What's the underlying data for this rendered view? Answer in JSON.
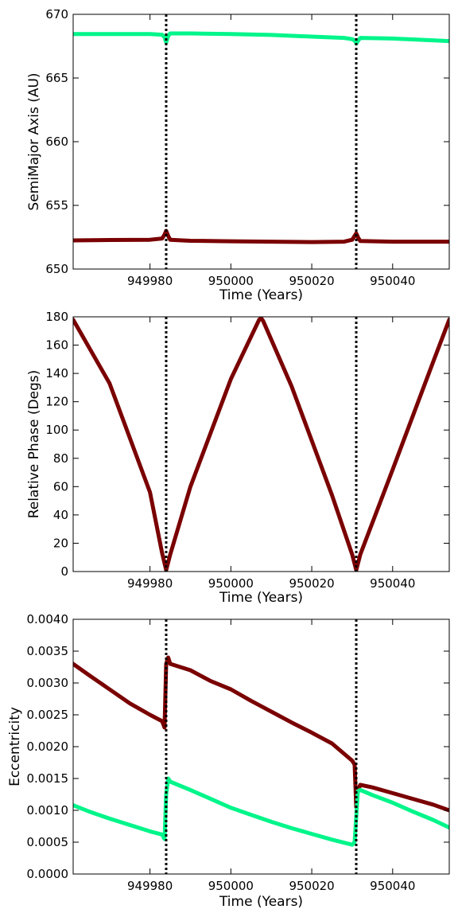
{
  "colors": {
    "dark_red": "#7a0000",
    "spring_green": "#00f58a",
    "marker_line": "#000000",
    "frame": "#000000",
    "background": "#ffffff"
  },
  "chart_data": [
    {
      "type": "line",
      "xlabel": "Time (Years)",
      "ylabel": "SemiMajor Axis (AU)",
      "xlim": [
        949961,
        950054
      ],
      "ylim": [
        650,
        670
      ],
      "xticks": [
        "949980",
        "950000",
        "950020",
        "950040"
      ],
      "yticks": [
        "650",
        "655",
        "660",
        "665",
        "670"
      ],
      "vlines": [
        949984,
        950031
      ],
      "grid": false,
      "series": [
        {
          "color": "#00f58a",
          "x": [
            949961,
            949970,
            949980,
            949983,
            949983.6,
            949984,
            949984.5,
            949985,
            949990,
            950000,
            950010,
            950020,
            950028,
            950030,
            950030.8,
            950031,
            950031.5,
            950032,
            950040,
            950054
          ],
          "y": [
            668.45,
            668.45,
            668.45,
            668.4,
            668.2,
            667.8,
            668.3,
            668.5,
            668.5,
            668.45,
            668.38,
            668.25,
            668.15,
            668.05,
            667.9,
            667.7,
            667.95,
            668.15,
            668.1,
            667.9
          ]
        },
        {
          "color": "#7a0000",
          "x": [
            949961,
            949970,
            949980,
            949983,
            949983.6,
            949984,
            949984.5,
            949985,
            949990,
            950000,
            950010,
            950020,
            950028,
            950030,
            950030.6,
            950031,
            950031.5,
            950032,
            950040,
            950054
          ],
          "y": [
            652.25,
            652.28,
            652.3,
            652.4,
            652.7,
            653.0,
            652.6,
            652.3,
            652.22,
            652.18,
            652.15,
            652.12,
            652.15,
            652.3,
            652.6,
            652.8,
            652.45,
            652.2,
            652.15,
            652.15
          ]
        }
      ]
    },
    {
      "type": "line",
      "xlabel": "Time (Years)",
      "ylabel": "Relative Phase (Degs)",
      "xlim": [
        949961,
        950054
      ],
      "ylim": [
        0,
        180
      ],
      "xticks": [
        "949980",
        "950000",
        "950020",
        "950040"
      ],
      "yticks": [
        "0",
        "20",
        "40",
        "60",
        "80",
        "100",
        "120",
        "140",
        "160",
        "180"
      ],
      "vlines": [
        949984,
        950031
      ],
      "grid": false,
      "series": [
        {
          "color": "#7a0000",
          "x": [
            949961,
            949970,
            949980,
            949983,
            949984,
            949985,
            949990,
            950000,
            950007,
            950007.5,
            950008,
            950015,
            950025,
            950030,
            950031,
            950032,
            950040,
            950050,
            950054
          ],
          "y": [
            178,
            133,
            56,
            13,
            1,
            12,
            60,
            136,
            178,
            179,
            177,
            131,
            54,
            12,
            1,
            12,
            72,
            148,
            178
          ]
        }
      ]
    },
    {
      "type": "line",
      "xlabel": "Time (Years)",
      "ylabel": "Eccentricity",
      "xlim": [
        949961,
        950054
      ],
      "ylim": [
        0,
        0.004
      ],
      "xticks": [
        "949980",
        "950000",
        "950020",
        "950040"
      ],
      "yticks": [
        "0.0000",
        "0.0005",
        "0.0010",
        "0.0015",
        "0.0020",
        "0.0025",
        "0.0030",
        "0.0035",
        "0.0040"
      ],
      "vlines": [
        949984,
        950031
      ],
      "grid": false,
      "series": [
        {
          "color": "#7a0000",
          "x": [
            949961,
            949965,
            949970,
            949975,
            949980,
            949983,
            949983.6,
            949984,
            949984.5,
            949985,
            949990,
            949995,
            950000,
            950005,
            950010,
            950015,
            950020,
            950025,
            950030,
            950030.6,
            950031,
            950031.3,
            950032,
            950035,
            950040,
            950045,
            950050,
            950054
          ],
          "y": [
            0.0033,
            0.00312,
            0.0029,
            0.00268,
            0.0025,
            0.0024,
            0.0023,
            0.0033,
            0.0034,
            0.0033,
            0.0032,
            0.00303,
            0.0029,
            0.00272,
            0.00255,
            0.00238,
            0.00222,
            0.00205,
            0.00178,
            0.00172,
            0.00105,
            0.0013,
            0.0014,
            0.00136,
            0.00127,
            0.00118,
            0.00109,
            0.001
          ]
        },
        {
          "color": "#00f58a",
          "x": [
            949961,
            949965,
            949970,
            949975,
            949980,
            949983,
            949983.6,
            949984,
            949984.5,
            949985,
            949990,
            949995,
            950000,
            950005,
            950010,
            950015,
            950020,
            950025,
            950030,
            950030.6,
            950031,
            950031.4,
            950032,
            950035,
            950040,
            950045,
            950050,
            950054
          ],
          "y": [
            0.00108,
            0.00098,
            0.00087,
            0.00077,
            0.00067,
            0.00062,
            0.00055,
            0.00125,
            0.0015,
            0.00145,
            0.00132,
            0.00118,
            0.00104,
            0.00093,
            0.00082,
            0.00072,
            0.00063,
            0.00054,
            0.00046,
            0.0005,
            0.0009,
            0.0013,
            0.00132,
            0.00124,
            0.00112,
            0.00098,
            0.00085,
            0.00073
          ]
        }
      ]
    }
  ]
}
